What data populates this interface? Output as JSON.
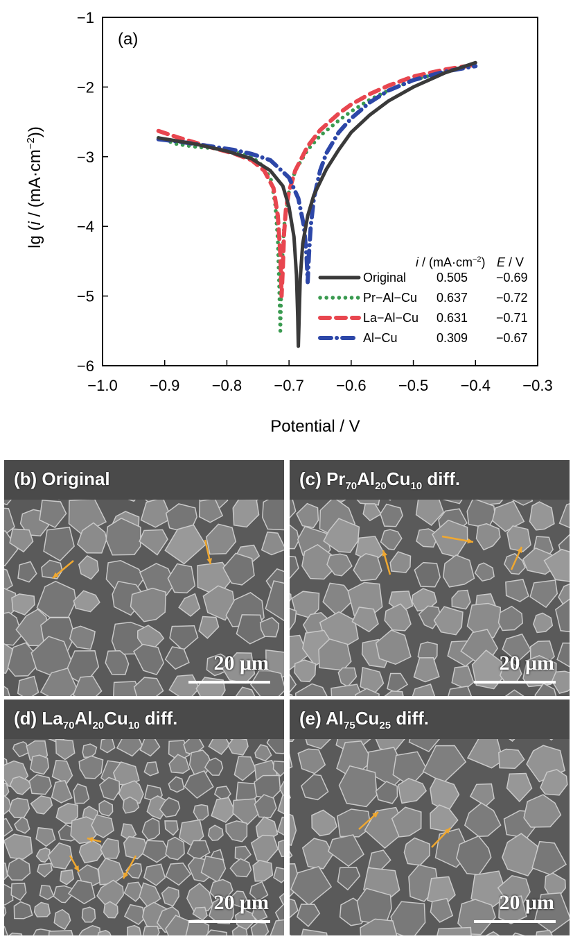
{
  "chart_data": {
    "type": "line",
    "panel_label": "(a)",
    "xlabel": "Potential / V",
    "ylabel": "lg (i / (mA·cm⁻²))",
    "xlim": [
      -1.0,
      -0.3
    ],
    "ylim": [
      -6,
      -1
    ],
    "xticks": [
      "−1.0",
      "−0.9",
      "−0.8",
      "−0.7",
      "−0.6",
      "−0.5",
      "−0.4",
      "−0.3"
    ],
    "yticks": [
      "−1",
      "−2",
      "−3",
      "−4",
      "−5",
      "−6"
    ],
    "legend_position": "bottom-right",
    "legend_headers": {
      "i": "i / (mA·cm⁻²)",
      "E": "E / V"
    },
    "series": [
      {
        "name": "Original",
        "i": "0.505",
        "E": "−0.69",
        "color": "#3a3a3a",
        "style": "solid",
        "x": [
          -0.91,
          -0.85,
          -0.8,
          -0.76,
          -0.73,
          -0.71,
          -0.7,
          -0.692,
          -0.688,
          -0.686,
          -0.685,
          -0.684,
          -0.682,
          -0.678,
          -0.67,
          -0.66,
          -0.64,
          -0.62,
          -0.6,
          -0.57,
          -0.54,
          -0.5,
          -0.45,
          -0.4
        ],
        "y": [
          -2.73,
          -2.82,
          -2.92,
          -3.03,
          -3.2,
          -3.42,
          -3.72,
          -4.15,
          -4.7,
          -5.3,
          -5.72,
          -5.4,
          -4.75,
          -4.25,
          -3.85,
          -3.55,
          -3.18,
          -2.9,
          -2.65,
          -2.4,
          -2.2,
          -2.0,
          -1.8,
          -1.65
        ]
      },
      {
        "name": "Pr−Al−Cu",
        "i": "0.637",
        "E": "−0.72",
        "color": "#3a9a50",
        "style": "dotted",
        "x": [
          -0.91,
          -0.88,
          -0.85,
          -0.82,
          -0.79,
          -0.76,
          -0.74,
          -0.728,
          -0.722,
          -0.718,
          -0.716,
          -0.714,
          -0.712,
          -0.708,
          -0.7,
          -0.69,
          -0.67,
          -0.65,
          -0.62,
          -0.6,
          -0.57,
          -0.54,
          -0.5,
          -0.45,
          -0.41
        ],
        "y": [
          -2.73,
          -2.82,
          -2.86,
          -2.88,
          -2.92,
          -3.0,
          -3.15,
          -3.35,
          -3.7,
          -4.2,
          -4.8,
          -5.5,
          -4.7,
          -4.0,
          -3.5,
          -3.2,
          -2.9,
          -2.7,
          -2.48,
          -2.35,
          -2.18,
          -2.05,
          -1.9,
          -1.78,
          -1.7
        ]
      },
      {
        "name": "La−Al−Cu",
        "i": "0.631",
        "E": "−0.71",
        "color": "#e8464f",
        "style": "dashed",
        "x": [
          -0.91,
          -0.88,
          -0.85,
          -0.82,
          -0.79,
          -0.76,
          -0.74,
          -0.725,
          -0.718,
          -0.714,
          -0.712,
          -0.71,
          -0.708,
          -0.705,
          -0.7,
          -0.69,
          -0.67,
          -0.65,
          -0.62,
          -0.6,
          -0.57,
          -0.54,
          -0.5,
          -0.45,
          -0.4
        ],
        "y": [
          -2.63,
          -2.72,
          -2.8,
          -2.88,
          -2.95,
          -3.05,
          -3.2,
          -3.45,
          -3.85,
          -4.4,
          -5.0,
          -4.6,
          -4.1,
          -3.75,
          -3.5,
          -3.2,
          -2.85,
          -2.62,
          -2.38,
          -2.25,
          -2.1,
          -1.98,
          -1.85,
          -1.75,
          -1.68
        ]
      },
      {
        "name": "Al−Cu",
        "i": "0.309",
        "E": "−0.67",
        "color": "#2d47a8",
        "style": "dashdot",
        "x": [
          -0.91,
          -0.88,
          -0.85,
          -0.82,
          -0.79,
          -0.76,
          -0.73,
          -0.7,
          -0.685,
          -0.676,
          -0.672,
          -0.67,
          -0.668,
          -0.665,
          -0.66,
          -0.65,
          -0.64,
          -0.62,
          -0.6,
          -0.57,
          -0.54,
          -0.5,
          -0.45,
          -0.4
        ],
        "y": [
          -2.75,
          -2.78,
          -2.82,
          -2.86,
          -2.9,
          -2.96,
          -3.05,
          -3.3,
          -3.6,
          -4.0,
          -4.4,
          -4.8,
          -4.4,
          -4.0,
          -3.6,
          -3.2,
          -2.95,
          -2.65,
          -2.45,
          -2.22,
          -2.05,
          -1.9,
          -1.78,
          -1.7
        ]
      }
    ]
  },
  "micrographs": [
    {
      "label": "(b) Original",
      "label_parts": [
        "(b) Original"
      ],
      "subs": [],
      "scale": "20 μm"
    },
    {
      "label": "(c) Pr70Al20Cu10 diff.",
      "label_parts": [
        "(c) Pr",
        "Al",
        "Cu",
        " diff."
      ],
      "subs": [
        "70",
        "20",
        "10"
      ],
      "scale": "20 μm"
    },
    {
      "label": "(d) La70Al20Cu10 diff.",
      "label_parts": [
        "(d) La",
        "Al",
        "Cu",
        " diff."
      ],
      "subs": [
        "70",
        "20",
        "10"
      ],
      "scale": "20 μm"
    },
    {
      "label": "(e) Al75Cu25 diff.",
      "label_parts": [
        "(e) Al",
        "Cu",
        " diff."
      ],
      "subs": [
        "75",
        "25"
      ],
      "scale": "20 μm"
    }
  ],
  "colors": {
    "arrow": "#f0a830",
    "header_bar": "#4a4a4a"
  }
}
